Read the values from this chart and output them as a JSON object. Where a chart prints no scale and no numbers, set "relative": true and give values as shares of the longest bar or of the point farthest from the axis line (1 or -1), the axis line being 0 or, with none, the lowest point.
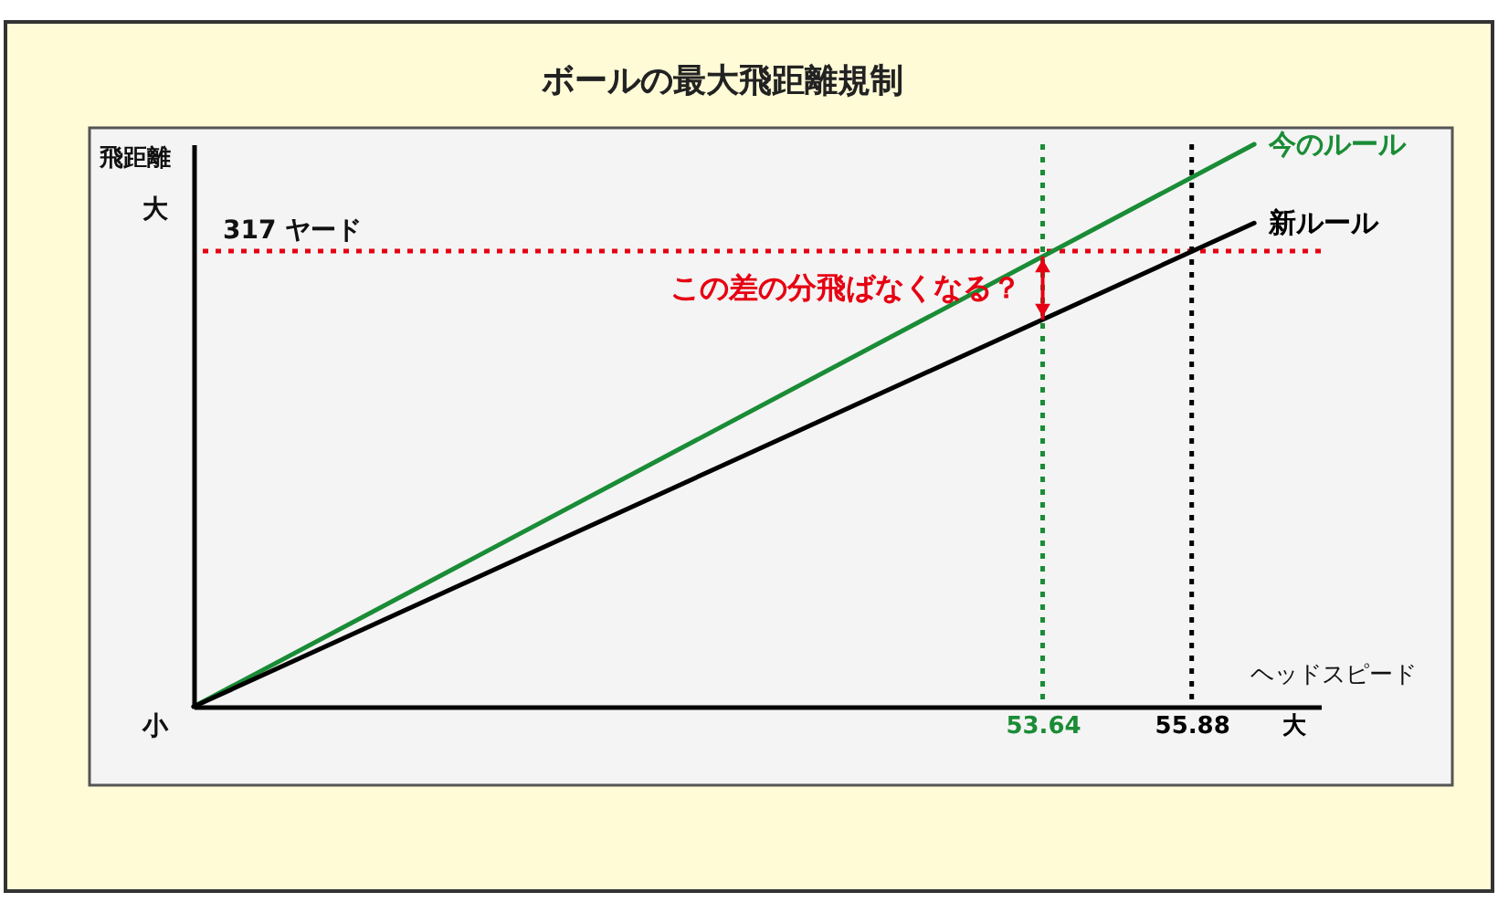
{
  "chart_data": {
    "type": "line",
    "title": "ボールの最大飛距離規制",
    "xlabel": "ヘッドスピード",
    "ylabel": "飛距離",
    "relative": true,
    "xlim": [
      40.88,
      57.82
    ],
    "xticks": [
      53.64,
      55.88,
      {
        "value": 57.41,
        "label": "大"
      }
    ],
    "tick_labels": "x",
    "x": [
      40.88,
      56.82
    ],
    "series": [
      {
        "name": "今のルール",
        "color": "#1a8c36",
        "values": [
          0,
          1
        ]
      },
      {
        "name": "新ルール",
        "color": "#000000",
        "values": [
          0,
          0.86
        ]
      }
    ],
    "ref_lines": [
      {
        "axis": "y",
        "value": 0.81,
        "label": "317 ヤード",
        "color": "#e60012",
        "line_style": "dotted"
      },
      {
        "axis": "x",
        "value": 53.64,
        "color": "#1a8c36",
        "line_style": "dotted"
      },
      {
        "axis": "x",
        "value": 55.88,
        "color": "#000000",
        "line_style": "dotted"
      }
    ],
    "annotations": [
      {
        "text": "この差の分飛ばなくなる？",
        "x": 53.64,
        "y": 0.744
      },
      "大",
      "小"
    ],
    "grid": false,
    "marker": "none",
    "line_style": "solid"
  }
}
